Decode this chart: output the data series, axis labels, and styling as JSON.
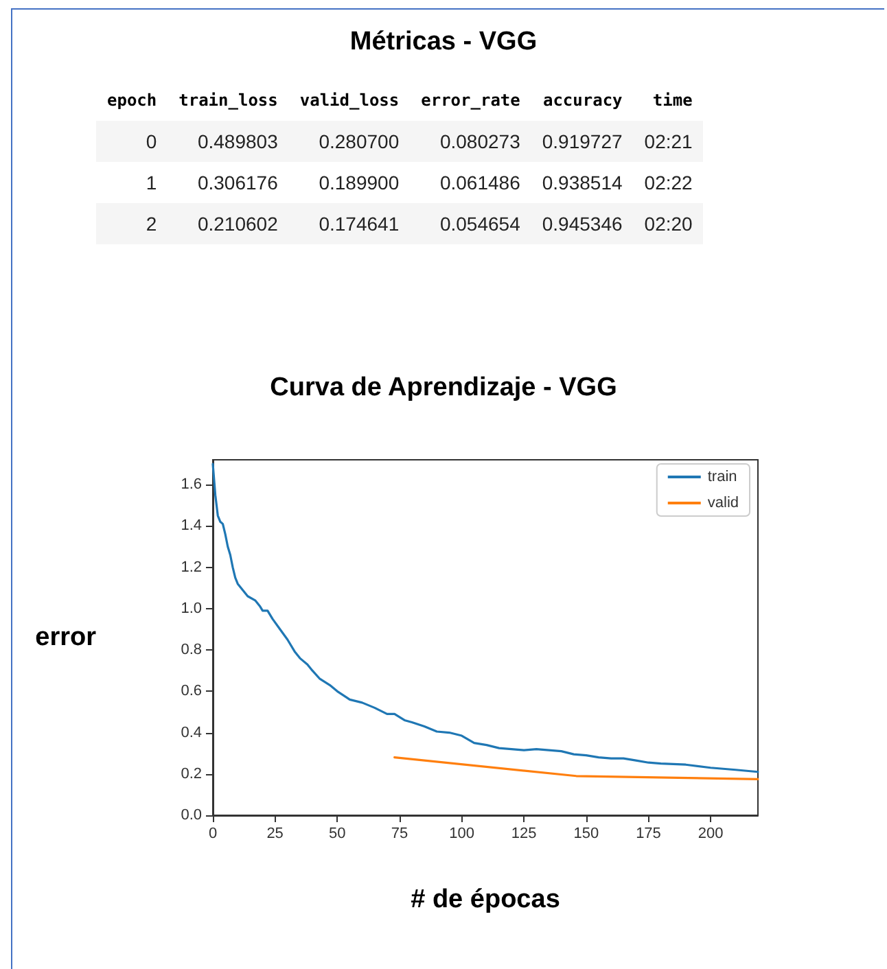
{
  "chart_data": [
    {
      "type": "other",
      "title": "Métricas - VGG",
      "categories": [
        "epoch",
        "train_loss",
        "valid_loss",
        "error_rate",
        "accuracy",
        "time"
      ],
      "annotations": [
        "0",
        "0.489803",
        "0.280700",
        "0.080273",
        "0.919727",
        "02:21",
        "1",
        "0.306176",
        "0.189900",
        "0.061486",
        "0.938514",
        "02:22",
        "2",
        "0.210602",
        "0.174641",
        "0.054654",
        "0.945346",
        "02:20"
      ]
    },
    {
      "type": "line",
      "title": "Curva de Aprendizaje - VGG",
      "xlabel": "# de épocas",
      "ylabel": "error",
      "xlim": [
        0,
        219
      ],
      "xticks": [
        0,
        25,
        50,
        75,
        100,
        125,
        150,
        175,
        200
      ],
      "ylim": [
        0,
        1.72
      ],
      "yticks": [
        {
          "value": 0,
          "label": "0.0"
        },
        0.2,
        0.4,
        0.6,
        0.8,
        {
          "value": 1,
          "label": "1.0"
        },
        1.2,
        1.4,
        1.6
      ],
      "grid": false,
      "legend": "top right",
      "marker": "none",
      "line_style": "solid",
      "series": [
        {
          "name": "train",
          "color": "#1f77b4",
          "x": [
            0,
            1,
            2,
            3,
            4,
            5,
            6,
            7,
            8,
            9,
            10,
            12,
            14,
            17,
            19,
            20,
            22,
            24,
            27,
            30,
            33,
            35,
            38,
            40,
            43,
            47,
            50,
            55,
            60,
            65,
            70,
            73,
            77,
            80,
            85,
            90,
            95,
            100,
            105,
            110,
            115,
            120,
            125,
            130,
            135,
            140,
            145,
            150,
            155,
            160,
            165,
            170,
            175,
            180,
            190,
            200,
            210,
            219
          ],
          "values": [
            1.7,
            1.55,
            1.45,
            1.42,
            1.41,
            1.36,
            1.3,
            1.26,
            1.2,
            1.15,
            1.12,
            1.09,
            1.06,
            1.04,
            1.01,
            0.99,
            0.99,
            0.95,
            0.9,
            0.85,
            0.79,
            0.76,
            0.73,
            0.7,
            0.66,
            0.63,
            0.6,
            0.56,
            0.545,
            0.52,
            0.49,
            0.49,
            0.46,
            0.45,
            0.43,
            0.405,
            0.4,
            0.385,
            0.35,
            0.34,
            0.325,
            0.32,
            0.315,
            0.32,
            0.315,
            0.31,
            0.295,
            0.29,
            0.28,
            0.275,
            0.275,
            0.265,
            0.255,
            0.25,
            0.245,
            0.23,
            0.22,
            0.21
          ]
        },
        {
          "name": "valid",
          "color": "#ff7f0e",
          "x": [
            73,
            146,
            219
          ],
          "values": [
            0.28,
            0.19,
            0.175
          ]
        }
      ]
    }
  ]
}
